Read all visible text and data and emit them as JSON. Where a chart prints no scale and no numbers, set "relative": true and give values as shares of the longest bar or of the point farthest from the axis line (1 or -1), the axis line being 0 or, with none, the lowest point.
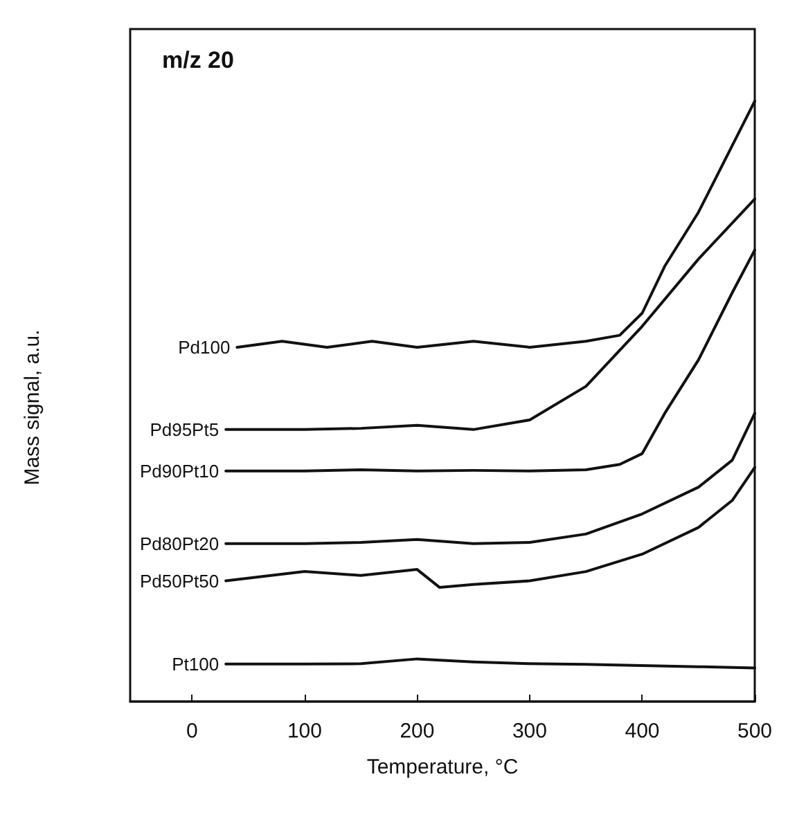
{
  "chart_data": {
    "type": "line",
    "title": "m/z 20",
    "xlabel": "Temperature, °C",
    "ylabel": "Mass signal, a.u.",
    "relative": true,
    "xlim": [
      -55,
      500
    ],
    "xticks": [
      0,
      100,
      200,
      300,
      400,
      500
    ],
    "grid": false,
    "legend": false,
    "marker": "none",
    "line_style": "solid",
    "series": [
      {
        "name": "Pd100",
        "color": "#111111",
        "x": [
          40,
          80,
          120,
          160,
          200,
          250,
          300,
          350,
          380,
          400,
          420,
          450,
          480,
          500
        ],
        "values": [
          0.59,
          0.6,
          0.59,
          0.6,
          0.59,
          0.6,
          0.59,
          0.6,
          0.61,
          0.647,
          0.725,
          0.815,
          0.926,
          1
        ]
      },
      {
        "name": "Pd95Pt5",
        "color": "#111111",
        "x": [
          30,
          100,
          150,
          200,
          250,
          300,
          350,
          400,
          450,
          500
        ],
        "values": [
          0.453,
          0.453,
          0.455,
          0.46,
          0.453,
          0.469,
          0.525,
          0.625,
          0.737,
          0.837
        ]
      },
      {
        "name": "Pd90Pt10",
        "color": "#111111",
        "x": [
          30,
          100,
          150,
          200,
          250,
          300,
          350,
          380,
          400,
          420,
          450,
          480,
          500
        ],
        "values": [
          0.384,
          0.384,
          0.386,
          0.384,
          0.385,
          0.384,
          0.386,
          0.395,
          0.413,
          0.48,
          0.569,
          0.681,
          0.752
        ]
      },
      {
        "name": "Pd80Pt20",
        "color": "#111111",
        "x": [
          30,
          100,
          150,
          200,
          250,
          300,
          350,
          400,
          450,
          480,
          500
        ],
        "values": [
          0.263,
          0.263,
          0.265,
          0.27,
          0.263,
          0.265,
          0.279,
          0.3125,
          0.357,
          0.402,
          0.48
        ]
      },
      {
        "name": "Pd50Pt50",
        "color": "#111111",
        "x": [
          30,
          100,
          150,
          200,
          220,
          250,
          300,
          350,
          400,
          450,
          480,
          500
        ],
        "values": [
          0.201,
          0.2165,
          0.21,
          0.22,
          0.19,
          0.195,
          0.201,
          0.2165,
          0.2455,
          0.29,
          0.335,
          0.39
        ]
      },
      {
        "name": "Pt100",
        "color": "#111111",
        "x": [
          30,
          100,
          150,
          200,
          250,
          300,
          350,
          400,
          450,
          500
        ],
        "values": [
          0.0625,
          0.0625,
          0.063,
          0.071,
          0.066,
          0.063,
          0.062,
          0.06,
          0.058,
          0.056
        ]
      }
    ]
  }
}
